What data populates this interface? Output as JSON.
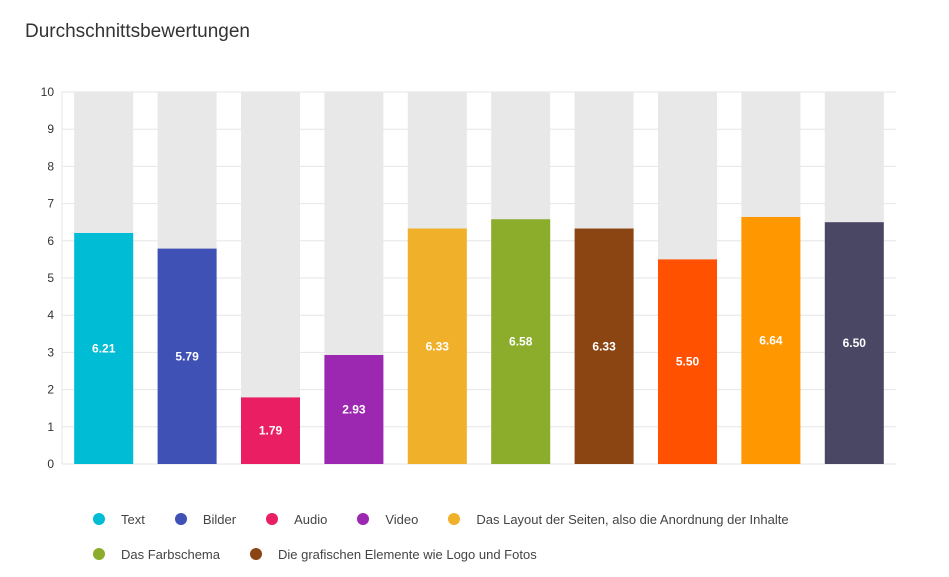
{
  "title": "Durchschnittsbewertungen",
  "chart_data": {
    "type": "bar",
    "title": "Durchschnittsbewertungen",
    "xlabel": "",
    "ylabel": "",
    "ylim": [
      0,
      10
    ],
    "yticks": [
      "0",
      "1",
      "2",
      "3",
      "4",
      "5",
      "6",
      "7",
      "8",
      "9",
      "10"
    ],
    "grid": true,
    "legend_position": "bottom",
    "background_bar_color": "#e8e8e8",
    "bars": [
      {
        "name": "Text",
        "value": 6.21,
        "label": "6.21",
        "color": "#00bcd4"
      },
      {
        "name": "Bilder",
        "value": 5.79,
        "label": "5.79",
        "color": "#3f51b5"
      },
      {
        "name": "Audio",
        "value": 1.79,
        "label": "1.79",
        "color": "#e91e63"
      },
      {
        "name": "Video",
        "value": 2.93,
        "label": "2.93",
        "color": "#9c27b0"
      },
      {
        "name": "Das Layout der Seiten, also die Anordnung der Inhalte",
        "value": 6.33,
        "label": "6.33",
        "color": "#f0b02a"
      },
      {
        "name": "Das Farbschema",
        "value": 6.58,
        "label": "6.58",
        "color": "#8bad2b"
      },
      {
        "name": "Die grafischen Elemente wie Logo und Fotos",
        "value": 6.33,
        "label": "6.33",
        "color": "#8b4513"
      },
      {
        "name": "",
        "value": 5.5,
        "label": "5.50",
        "color": "#ff5100"
      },
      {
        "name": "",
        "value": 6.64,
        "label": "6.64",
        "color": "#ff9800"
      },
      {
        "name": "",
        "value": 6.5,
        "label": "6.50",
        "color": "#4a4764"
      }
    ]
  },
  "legend": {
    "rows": [
      [
        {
          "label": "Text",
          "color": "#00bcd4"
        },
        {
          "label": "Bilder",
          "color": "#3f51b5"
        },
        {
          "label": "Audio",
          "color": "#e91e63"
        },
        {
          "label": "Video",
          "color": "#9c27b0"
        },
        {
          "label": "Das Layout der Seiten, also die Anordnung der Inhalte",
          "color": "#f0b02a"
        }
      ],
      [
        {
          "label": "Das Farbschema",
          "color": "#8bad2b"
        },
        {
          "label": "Die grafischen Elemente wie Logo und Fotos",
          "color": "#8b4513"
        }
      ]
    ]
  }
}
